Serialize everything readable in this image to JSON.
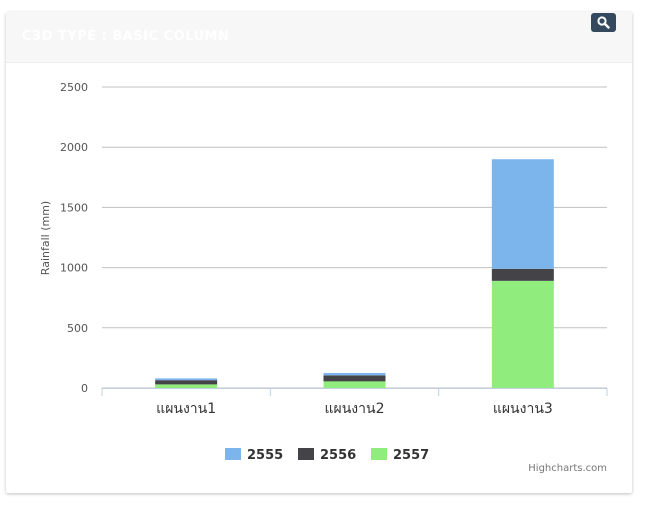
{
  "header": {
    "title": "C3D TYPE : BASIC COLUMN"
  },
  "credits": "Highcharts.com",
  "colors": {
    "2555": "#7cb5ec",
    "2556": "#434348",
    "2557": "#90ed7d",
    "search_button": "#34495e"
  },
  "chart_data": {
    "type": "bar",
    "stacked": true,
    "title": "",
    "xlabel": "",
    "ylabel": "Rainfall (mm)",
    "ylim": [
      0,
      2500
    ],
    "yticks": [
      0,
      500,
      1000,
      1500,
      2000,
      2500
    ],
    "grid": true,
    "legend_position": "bottom-center",
    "categories": [
      "แผนงาน1",
      "แผนงาน2",
      "แผนงาน3"
    ],
    "series": [
      {
        "name": "2555",
        "values": [
          15,
          20,
          910
        ],
        "color": "#7cb5ec"
      },
      {
        "name": "2556",
        "values": [
          35,
          50,
          100
        ],
        "color": "#434348"
      },
      {
        "name": "2557",
        "values": [
          30,
          55,
          890
        ],
        "color": "#90ed7d"
      }
    ]
  }
}
